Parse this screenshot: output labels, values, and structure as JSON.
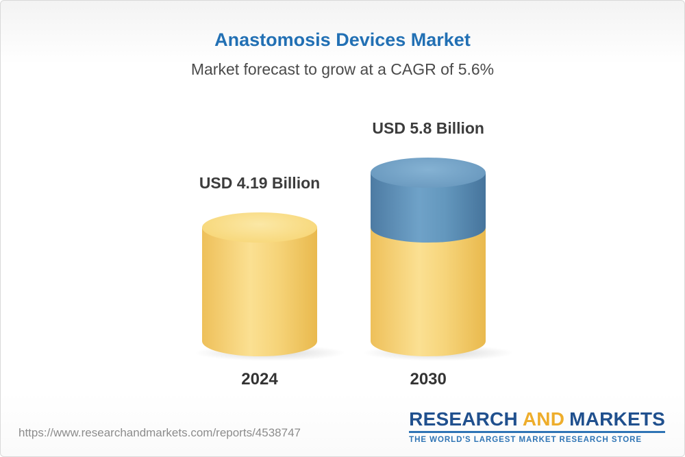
{
  "chart_data": {
    "type": "bar",
    "title": "Anastomosis Devices Market",
    "subtitle": "Market forecast to grow at a CAGR of 5.6%",
    "cagr_pct": 5.6,
    "unit": "USD Billion",
    "categories": [
      "2024",
      "2030"
    ],
    "values": [
      4.19,
      5.8
    ],
    "bars": [
      {
        "category": "2024",
        "value": 4.19,
        "label": "USD 4.19 Billion",
        "body_color": "#f3c963",
        "top_color": "#f8d97e"
      },
      {
        "category": "2030",
        "value": 5.8,
        "label": "USD 5.8 Billion",
        "base_value": 4.19,
        "body_color": "#f3c963",
        "top_color": "#f8d97e",
        "cap_body_color": "#557fa5",
        "cap_top_color": "#6d9cc1"
      }
    ],
    "ylim": [
      0,
      6.5
    ],
    "legend": "none",
    "axes": "hidden"
  },
  "colors": {
    "title_blue": "#2270b4",
    "subtitle_gray": "#4a4a4a",
    "label_dark": "#3c3c3c",
    "logo_navy": "#20508e",
    "logo_gold": "#eead2b",
    "logo_blue": "#2e74b5",
    "url_gray": "#8c8c8c"
  },
  "footer": {
    "url": "https://www.researchandmarkets.com/reports/4538747"
  },
  "logo": {
    "research": "RESEARCH",
    "and": "AND",
    "markets": "MARKETS",
    "tagline": "THE WORLD'S LARGEST MARKET RESEARCH STORE"
  }
}
